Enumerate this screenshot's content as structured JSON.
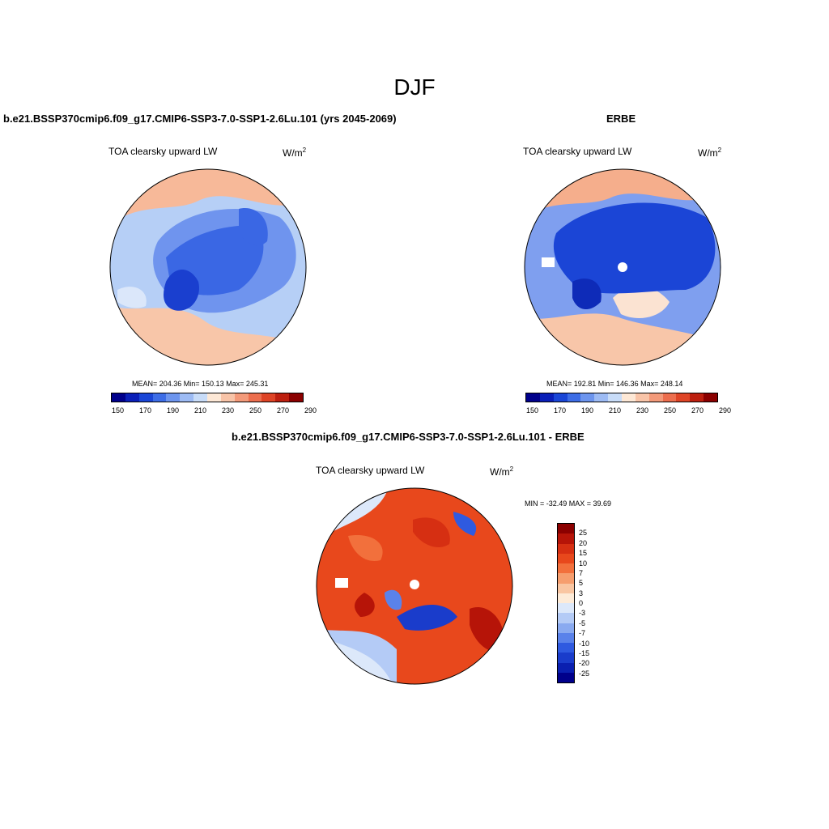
{
  "title": "DJF",
  "panels": [
    {
      "title": "b.e21.BSSP370cmip6.f09_g17.CMIP6-SSP3-7.0-SSP1-2.6Lu.101 (yrs 2045-2069)",
      "variable": "TOA clearsky upward LW",
      "units": "W/m",
      "units_sup": "2",
      "stats": "MEAN= 204.36  Min= 150.13  Max= 245.31"
    },
    {
      "title": "ERBE",
      "variable": "TOA clearsky upward LW",
      "units": "W/m",
      "units_sup": "2",
      "stats": "MEAN= 192.81  Min= 146.36  Max= 248.14"
    },
    {
      "title": "b.e21.BSSP370cmip6.f09_g17.CMIP6-SSP3-7.0-SSP1-2.6Lu.101 - ERBE",
      "variable": "TOA clearsky upward LW",
      "units": "W/m",
      "units_sup": "2",
      "stats": "MIN = -32.49 MAX =  39.69"
    }
  ],
  "colorbar_abs": {
    "colors": [
      "#00008b",
      "#0a1fb8",
      "#1a46d6",
      "#3d6de6",
      "#6d95ee",
      "#9dbbf4",
      "#c8dcf8",
      "#fde8d6",
      "#f8c4a8",
      "#f39a7a",
      "#ec6e4e",
      "#de4426",
      "#bd1f0f",
      "#8b0000"
    ],
    "labels": [
      "150",
      "170",
      "190",
      "210",
      "230",
      "250",
      "270",
      "290"
    ]
  },
  "colorbar_diff": {
    "colors": [
      "#8b0000",
      "#b61408",
      "#d62f12",
      "#e8481c",
      "#f2703c",
      "#f69e6e",
      "#f9c6a2",
      "#fdebd8",
      "#dce8fa",
      "#b4cbf6",
      "#8aaaf0",
      "#5a82ea",
      "#2f5ae0",
      "#1a3ccb",
      "#0a1fb0",
      "#00008b"
    ],
    "labels": [
      "25",
      "20",
      "15",
      "10",
      "7",
      "5",
      "3",
      "0",
      "-3",
      "-5",
      "-7",
      "-10",
      "-15",
      "-20",
      "-25"
    ]
  }
}
